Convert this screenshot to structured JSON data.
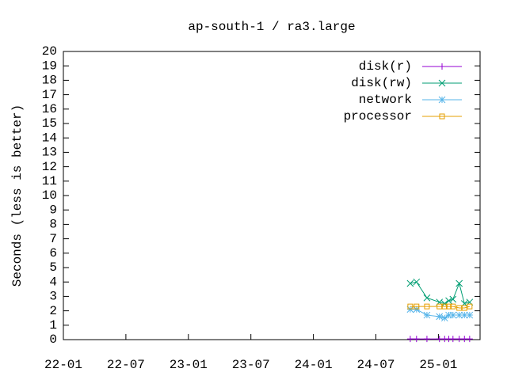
{
  "chart_data": {
    "type": "line",
    "title": "ap-south-1 / ra3.large",
    "ylabel": "Seconds (less is better)",
    "x": [
      33.3,
      33.9,
      34.9,
      36.1,
      36.6,
      37.0,
      37.4,
      38.0,
      38.5,
      39.0
    ],
    "series": [
      {
        "name": "disk(r)",
        "color": "#9400d3",
        "marker": "plus",
        "values": [
          0.05,
          0.05,
          0.05,
          0.05,
          0.05,
          0.05,
          0.05,
          0.05,
          0.05,
          0.05
        ]
      },
      {
        "name": "disk(rw)",
        "color": "#009e73",
        "marker": "cross",
        "values": [
          3.9,
          4.0,
          2.9,
          2.6,
          2.5,
          2.7,
          2.8,
          3.9,
          2.5,
          2.6
        ]
      },
      {
        "name": "network",
        "color": "#56b4e9",
        "marker": "star",
        "values": [
          2.1,
          2.1,
          1.7,
          1.6,
          1.5,
          1.7,
          1.7,
          1.7,
          1.7,
          1.7
        ]
      },
      {
        "name": "processor",
        "color": "#e69f00",
        "marker": "square",
        "values": [
          2.3,
          2.3,
          2.3,
          2.3,
          2.3,
          2.3,
          2.3,
          2.2,
          2.2,
          2.3
        ]
      }
    ],
    "xlim": [
      0,
      40
    ],
    "xticks": [
      {
        "value": 0,
        "label": "22-01"
      },
      {
        "value": 6,
        "label": "22-07"
      },
      {
        "value": 12,
        "label": "23-01"
      },
      {
        "value": 18,
        "label": "23-07"
      },
      {
        "value": 24,
        "label": "24-01"
      },
      {
        "value": 30,
        "label": "24-07"
      },
      {
        "value": 36,
        "label": "25-01"
      }
    ],
    "ylim": [
      0,
      20
    ],
    "yticks": [
      0,
      1,
      2,
      3,
      4,
      5,
      6,
      7,
      8,
      9,
      10,
      11,
      12,
      13,
      14,
      15,
      16,
      17,
      18,
      19,
      20
    ],
    "legend": "top-right"
  }
}
